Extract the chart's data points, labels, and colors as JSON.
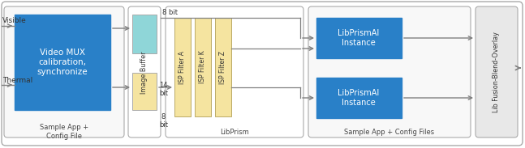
{
  "fig_width": 6.47,
  "fig_height": 1.83,
  "dpi": 100,
  "bg_color": "#ffffff",
  "blue_box_color": "#2980c8",
  "teal_box_color": "#8fd6d8",
  "yellow_box_color": "#f5e4a0",
  "fusion_bg": "#e8e8e8",
  "arrow_color": "#808080",
  "labels": {
    "visible": "Visible",
    "thermal": "Thermal",
    "video_mux": "Video MUX\ncalibration,\nsynchronize",
    "image_buffer": "Image Buffer",
    "isp_filter_a": "ISP Filter A",
    "isp_filter_k": "ISP Filter K",
    "isp_filter_z": "ISP Filter Z",
    "libprismai1": "LibPrismAI\nInstance",
    "libprismai2": "LibPrismAI\nInstance",
    "lib_fusion": "Lib Fusion-Blend-Overlay",
    "sample_app1": "Sample App +\nConfig File",
    "sample_app2": "Sample App + Config Files",
    "libprism": "LibPrism",
    "8bit_top": "8 bit",
    "14bit": "14\nbit",
    "8bit_bot": "8\nbit"
  }
}
